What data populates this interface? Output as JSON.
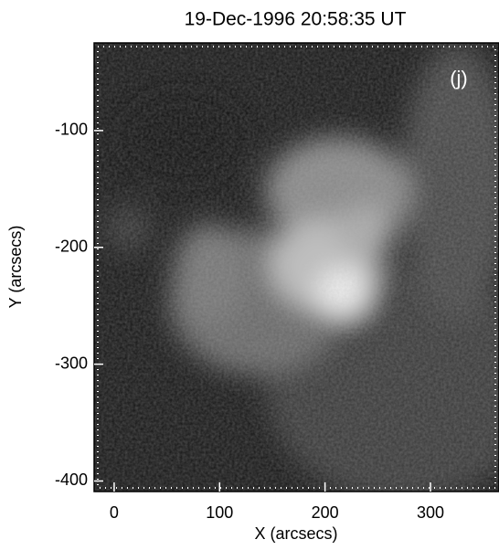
{
  "chart_data": {
    "type": "image",
    "title": "19-Dec-1996 20:58:35 UT",
    "annotation": "(j)",
    "x_label": "X (arcsecs)",
    "y_label": "Y (arcsecs)",
    "xlim": [
      -19,
      365
    ],
    "ylim": [
      -409,
      -25
    ],
    "xticks": [
      0,
      100,
      200,
      300
    ],
    "yticks": [
      -100,
      -200,
      -300,
      -400
    ]
  }
}
